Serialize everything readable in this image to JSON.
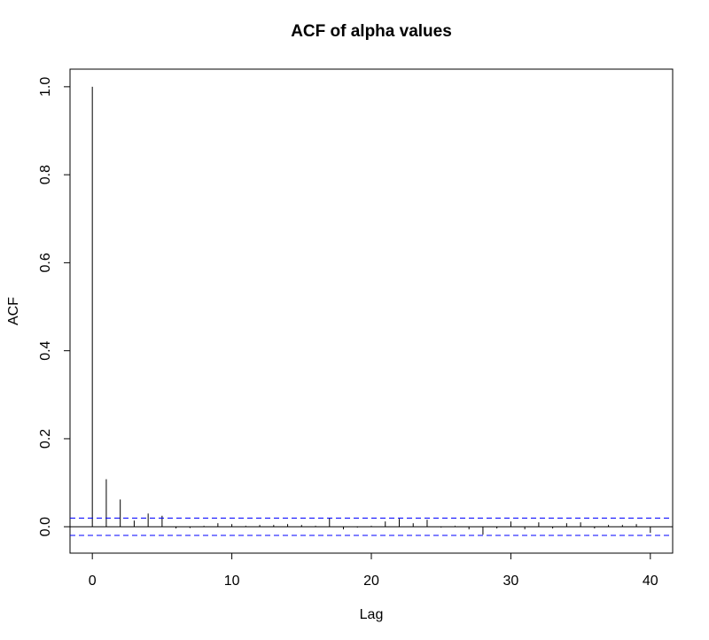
{
  "chart_data": {
    "type": "bar",
    "title": "ACF of alpha values",
    "xlabel": "Lag",
    "ylabel": "ACF",
    "xlim": [
      -1.6,
      41.6
    ],
    "ylim": [
      -0.06,
      1.04
    ],
    "x_ticks": [
      0,
      10,
      20,
      30,
      40
    ],
    "y_ticks": [
      0.0,
      0.2,
      0.4,
      0.6,
      0.8,
      1.0
    ],
    "x_tick_labels": [
      "0",
      "10",
      "20",
      "30",
      "40"
    ],
    "y_tick_labels": [
      "0.0",
      "0.2",
      "0.4",
      "0.6",
      "0.8",
      "1.0"
    ],
    "lags": [
      0,
      1,
      2,
      3,
      4,
      5,
      6,
      7,
      8,
      9,
      10,
      11,
      12,
      13,
      14,
      15,
      16,
      17,
      18,
      19,
      20,
      21,
      22,
      23,
      24,
      25,
      26,
      27,
      28,
      29,
      30,
      31,
      32,
      33,
      34,
      35,
      36,
      37,
      38,
      39,
      40
    ],
    "acf": [
      1.0,
      0.108,
      0.062,
      0.014,
      0.03,
      0.025,
      -0.004,
      -0.003,
      0.002,
      0.008,
      0.006,
      0.002,
      0.004,
      0.004,
      0.006,
      0.004,
      0.002,
      0.02,
      -0.006,
      -0.002,
      0.002,
      0.012,
      0.018,
      0.008,
      0.016,
      -0.002,
      0.002,
      -0.006,
      -0.018,
      -0.004,
      0.012,
      -0.006,
      0.01,
      -0.004,
      0.008,
      0.01,
      -0.004,
      0.004,
      0.004,
      0.006,
      -0.014
    ],
    "confidence_bound": 0.0196,
    "colors": {
      "bars": "#000000",
      "zero_line": "#000000",
      "confidence_lines": "#0000ff",
      "frame": "#000000"
    }
  }
}
